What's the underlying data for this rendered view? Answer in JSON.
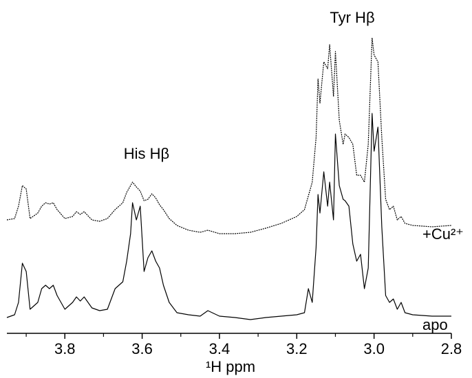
{
  "chart_data": {
    "type": "line",
    "xlabel": "¹H ppm",
    "annotations": [
      "His Hβ",
      "Tyr Hβ"
    ],
    "xlim": [
      3.95,
      2.8
    ],
    "xticks": [
      3.8,
      3.6,
      3.4,
      3.2,
      {
        "value": 3.0,
        "label": "3.0"
      },
      2.8
    ],
    "xminor_ticks": [
      3.9,
      3.7,
      3.5,
      3.3,
      3.1,
      2.9
    ],
    "ylim": [
      0,
      430
    ],
    "x": [
      3.95,
      3.93,
      3.92,
      3.91,
      3.9,
      3.89,
      3.87,
      3.86,
      3.85,
      3.84,
      3.83,
      3.82,
      3.8,
      3.78,
      3.77,
      3.76,
      3.75,
      3.73,
      3.71,
      3.69,
      3.67,
      3.65,
      3.64,
      3.63,
      3.625,
      3.615,
      3.605,
      3.595,
      3.585,
      3.575,
      3.565,
      3.555,
      3.545,
      3.53,
      3.51,
      3.48,
      3.45,
      3.43,
      3.4,
      3.36,
      3.32,
      3.28,
      3.24,
      3.2,
      3.18,
      3.17,
      3.16,
      3.15,
      3.145,
      3.14,
      3.13,
      3.12,
      3.115,
      3.105,
      3.1,
      3.09,
      3.08,
      3.075,
      3.065,
      3.055,
      3.045,
      3.035,
      3.025,
      3.015,
      3.005,
      3.0,
      2.99,
      2.98,
      2.97,
      2.96,
      2.95,
      2.94,
      2.93,
      2.92,
      2.9,
      2.85,
      2.8
    ],
    "series": [
      {
        "name": "+Cu²⁺",
        "color": "#000000",
        "style": "dotted",
        "values": [
          150,
          152,
          170,
          200,
          195,
          152,
          160,
          170,
          175,
          173,
          175,
          165,
          152,
          155,
          162,
          158,
          162,
          150,
          148,
          152,
          165,
          175,
          190,
          200,
          205,
          198,
          192,
          178,
          180,
          188,
          182,
          172,
          165,
          152,
          142,
          135,
          132,
          135,
          130,
          130,
          132,
          138,
          145,
          155,
          165,
          185,
          205,
          270,
          355,
          320,
          380,
          370,
          405,
          330,
          395,
          295,
          260,
          275,
          270,
          260,
          215,
          215,
          205,
          260,
          415,
          390,
          380,
          270,
          180,
          165,
          170,
          150,
          155,
          145,
          142,
          140,
          142
        ]
      },
      {
        "name": "apo",
        "color": "#000000",
        "style": "solid",
        "values": [
          8,
          12,
          30,
          87,
          75,
          20,
          30,
          50,
          55,
          50,
          55,
          40,
          20,
          30,
          38,
          32,
          38,
          22,
          18,
          20,
          50,
          60,
          90,
          130,
          175,
          150,
          170,
          75,
          95,
          105,
          90,
          80,
          55,
          30,
          15,
          12,
          10,
          18,
          10,
          8,
          5,
          8,
          10,
          12,
          15,
          50,
          30,
          110,
          187,
          160,
          220,
          170,
          205,
          150,
          275,
          200,
          180,
          178,
          170,
          115,
          90,
          100,
          50,
          80,
          305,
          250,
          285,
          140,
          40,
          30,
          35,
          20,
          30,
          15,
          12,
          10,
          10
        ]
      }
    ]
  }
}
